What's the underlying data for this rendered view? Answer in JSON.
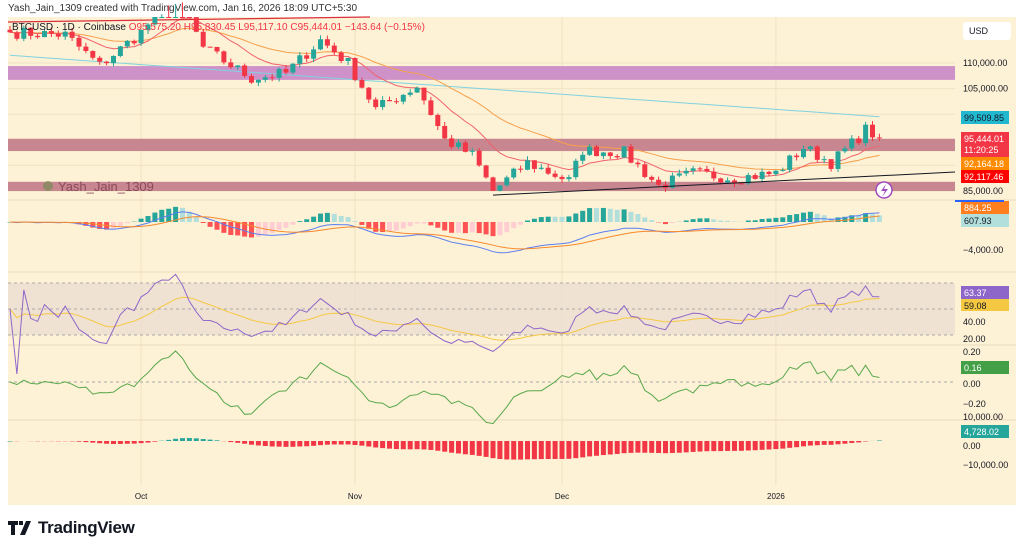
{
  "header": {
    "caption": "Yash_Jain_1309 created with TradingView.com, Jan 16, 2026 18:09 UTC+5:30"
  },
  "legend": {
    "symbol": "BTCUSD · 1D · Coinbase",
    "open": "O95,575.20",
    "high": "H95,830.45",
    "low": "L95,117.10",
    "close": "C95,444.01",
    "change": "−143.64 (−0.15%)"
  },
  "watermark": "Yash_Jain_1309",
  "currency_button": "USD",
  "brand": "TradingView",
  "colors": {
    "background": "#fdf1d6",
    "up": "#26a69a",
    "down": "#f23645",
    "zone_purple": "#c987c8",
    "zone_red": "#c27a8a",
    "ema_fast": "#f0626a",
    "ema_slow": "#f7a04b",
    "long_ma": "#7fd3e0",
    "macd": "#5b7ff0",
    "signal": "#f78a2b",
    "rsi": "#8e66c9",
    "rsi_ma": "#f5c842",
    "oscillator": "#58a84a"
  },
  "chart_data": {
    "type": "candlestick",
    "symbol": "BTCUSD",
    "interval": "1D",
    "exchange": "Coinbase",
    "x_ticks": [
      "Oct",
      "Nov",
      "Dec",
      "2026"
    ],
    "close_path": [
      [
        "2025-09-12",
        116000
      ],
      [
        "2025-09-20",
        115500
      ],
      [
        "2025-09-25",
        109500
      ],
      [
        "2025-10-01",
        116000
      ],
      [
        "2025-10-06",
        124000
      ],
      [
        "2025-10-10",
        113000
      ],
      [
        "2025-10-17",
        107000
      ],
      [
        "2025-10-22",
        108000
      ],
      [
        "2025-10-27",
        114500
      ],
      [
        "2025-10-31",
        110000
      ],
      [
        "2025-11-04",
        101000
      ],
      [
        "2025-11-10",
        105500
      ],
      [
        "2025-11-14",
        95000
      ],
      [
        "2025-11-18",
        92000
      ],
      [
        "2025-11-21",
        85000
      ],
      [
        "2025-11-26",
        90500
      ],
      [
        "2025-12-02",
        87000
      ],
      [
        "2025-12-04",
        93000
      ],
      [
        "2025-12-10",
        92500
      ],
      [
        "2025-12-15",
        86000
      ],
      [
        "2025-12-20",
        88500
      ],
      [
        "2025-12-26",
        87500
      ],
      [
        "2026-01-01",
        88500
      ],
      [
        "2026-01-05",
        93500
      ],
      [
        "2026-01-09",
        90500
      ],
      [
        "2026-01-13",
        95500
      ],
      [
        "2026-01-14",
        97000
      ],
      [
        "2026-01-16",
        95444.01
      ]
    ],
    "zones": [
      {
        "from": 106700,
        "to": 109400,
        "color": "purple"
      },
      {
        "from": 92800,
        "to": 95200,
        "color": "red"
      },
      {
        "from": 85000,
        "to": 86800,
        "color": "red"
      }
    ],
    "trendline": {
      "from": [
        "2025-11-21",
        84200
      ],
      "to": [
        "2026-01-27",
        88700
      ]
    },
    "price_axis": {
      "ticks": [
        "110,000.00",
        "105,000.00",
        "85,000.00"
      ],
      "range": [
        83500,
        119000
      ]
    },
    "price_labels": {
      "long_ma": "99,509.85",
      "last": "95,444.01",
      "countdown": "11:20:25",
      "ema_slow": "92,164.18",
      "ema_fast": "92,117.46"
    },
    "macd_pane": {
      "ticks": [
        "−4,000.00"
      ],
      "labels": [
        "884.25",
        "607.93"
      ]
    },
    "rsi_pane": {
      "ticks": [
        "40.00",
        "20.00"
      ],
      "bands": [
        70,
        50,
        30
      ],
      "labels": [
        "63.37",
        "59.08"
      ]
    },
    "osc_pane": {
      "ticks": [
        "0.20",
        "0.00",
        "−0.20"
      ],
      "labels": [
        "0.16"
      ]
    },
    "hist_pane": {
      "ticks": [
        "10,000.00",
        "0.00",
        "−10,000.00"
      ],
      "labels": [
        "4,728.02"
      ]
    }
  }
}
